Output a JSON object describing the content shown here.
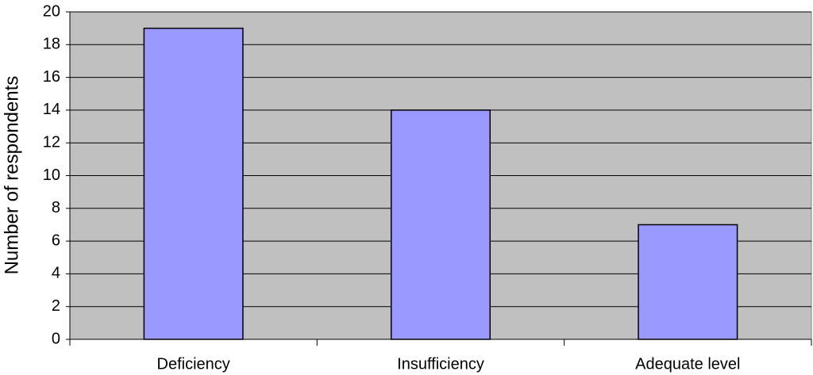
{
  "chart_data": {
    "type": "bar",
    "y_label": "Number of respondents",
    "categories": [
      "Deficiency",
      "Insufficiency",
      "Adequate level"
    ],
    "values": [
      19,
      14,
      7
    ],
    "color": "#9999ff",
    "plot_background": "#c0c0c0",
    "ylim": [
      0,
      20
    ],
    "yticks": [
      0,
      2,
      4,
      6,
      8,
      10,
      12,
      14,
      16,
      18,
      20
    ],
    "grid": true
  }
}
